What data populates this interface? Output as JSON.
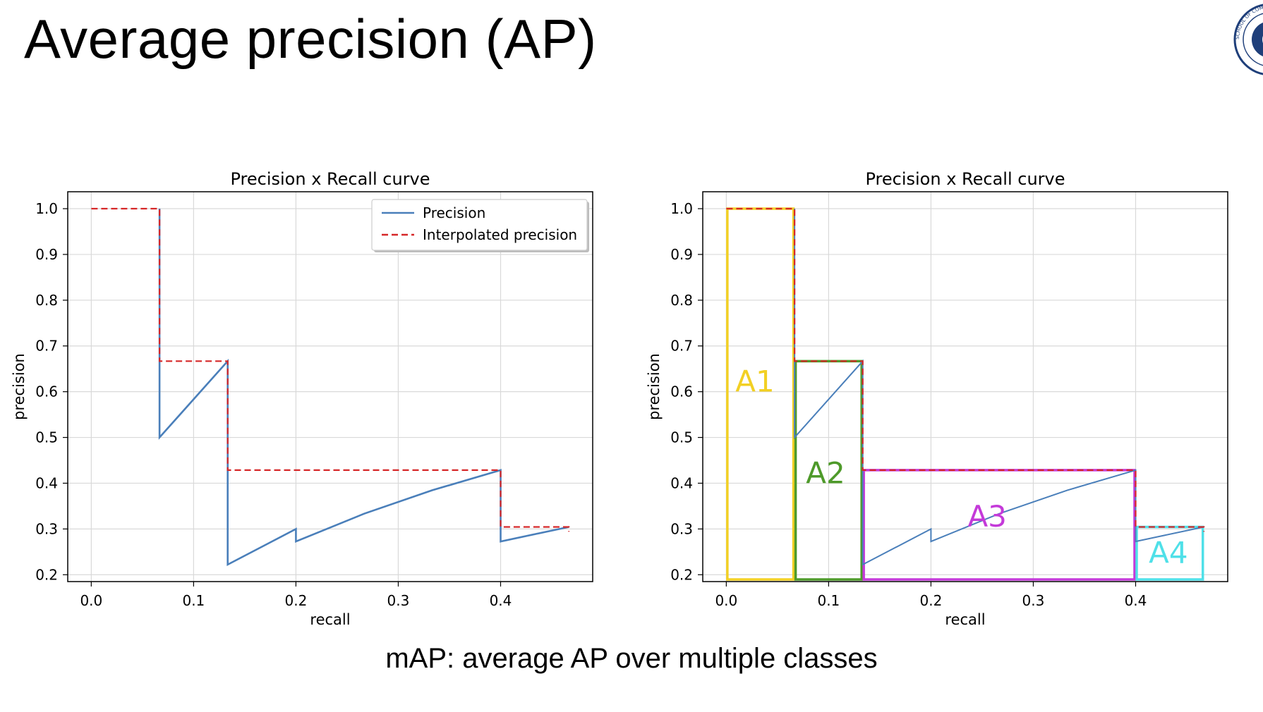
{
  "slide": {
    "title": "Average precision (AP)",
    "caption": "mAP: average AP over multiple classes",
    "logo": {
      "icon": "university-seal-icon",
      "text": "SCHOOL OF COMPUTER"
    }
  },
  "colors": {
    "precision": "#4a7fba",
    "interpolated": "#d62728",
    "A1": "#f2d024",
    "A2": "#4e9a2a",
    "A3": "#c43ad9",
    "A4": "#4fe0e8"
  },
  "chart_data": [
    {
      "type": "line",
      "title": "Precision x Recall curve",
      "xlabel": "recall",
      "ylabel": "precision",
      "xlim": [
        -0.023,
        0.49
      ],
      "ylim": [
        0.185,
        1.037
      ],
      "xticks": [
        "0.0",
        "0.1",
        "0.2",
        "0.3",
        "0.4"
      ],
      "yticks": [
        "0.2",
        "0.3",
        "0.4",
        "0.5",
        "0.6",
        "0.7",
        "0.8",
        "0.9",
        "1.0"
      ],
      "grid": true,
      "legend": "top-right",
      "series": [
        {
          "name": "Precision",
          "style": "solid",
          "x": [
            0.0667,
            0.0667,
            0.1333,
            0.1333,
            0.1333,
            0.2,
            0.2,
            0.2667,
            0.3333,
            0.4,
            0.4,
            0.4667
          ],
          "y": [
            1.0,
            0.5,
            0.6667,
            0.4286,
            0.2222,
            0.3,
            0.2727,
            0.3333,
            0.3846,
            0.4286,
            0.2727,
            0.3044
          ]
        },
        {
          "name": "Interpolated precision",
          "style": "dashed",
          "x": [
            0.0,
            0.0667,
            0.0667,
            0.1333,
            0.1333,
            0.4,
            0.4,
            0.4667,
            0.4667
          ],
          "y": [
            1.0,
            1.0,
            0.6667,
            0.6667,
            0.4286,
            0.4286,
            0.3044,
            0.3044,
            0.2941
          ]
        }
      ]
    },
    {
      "type": "line",
      "title": "Precision x Recall curve",
      "xlabel": "recall",
      "ylabel": "precision",
      "xlim": [
        -0.023,
        0.49
      ],
      "ylim": [
        0.185,
        1.037
      ],
      "xticks": [
        "0.0",
        "0.1",
        "0.2",
        "0.3",
        "0.4"
      ],
      "yticks": [
        "0.2",
        "0.3",
        "0.4",
        "0.5",
        "0.6",
        "0.7",
        "0.8",
        "0.9",
        "1.0"
      ],
      "grid": true,
      "series": [
        {
          "style": "solid",
          "x": [
            0.0667,
            0.0667,
            0.1333,
            0.1333,
            0.1333,
            0.2,
            0.2,
            0.2667,
            0.3333,
            0.4,
            0.4,
            0.4667
          ],
          "y": [
            1.0,
            0.5,
            0.6667,
            0.4286,
            0.2222,
            0.3,
            0.2727,
            0.3333,
            0.3846,
            0.4286,
            0.2727,
            0.3044
          ]
        },
        {
          "style": "dashed",
          "x": [
            0.0,
            0.0667,
            0.0667,
            0.1333,
            0.1333,
            0.4,
            0.4,
            0.4667,
            0.4667
          ],
          "y": [
            1.0,
            1.0,
            0.6667,
            0.6667,
            0.4286,
            0.4286,
            0.3044,
            0.3044,
            0.2941
          ]
        }
      ],
      "areas": [
        {
          "label": "A1",
          "x0": 0.0,
          "x1": 0.0667,
          "top": 1.0
        },
        {
          "label": "A2",
          "x0": 0.0667,
          "x1": 0.1333,
          "top": 0.6667
        },
        {
          "label": "A3",
          "x0": 0.1333,
          "x1": 0.4,
          "top": 0.4286
        },
        {
          "label": "A4",
          "x0": 0.4,
          "x1": 0.4667,
          "top": 0.3044
        }
      ]
    }
  ]
}
